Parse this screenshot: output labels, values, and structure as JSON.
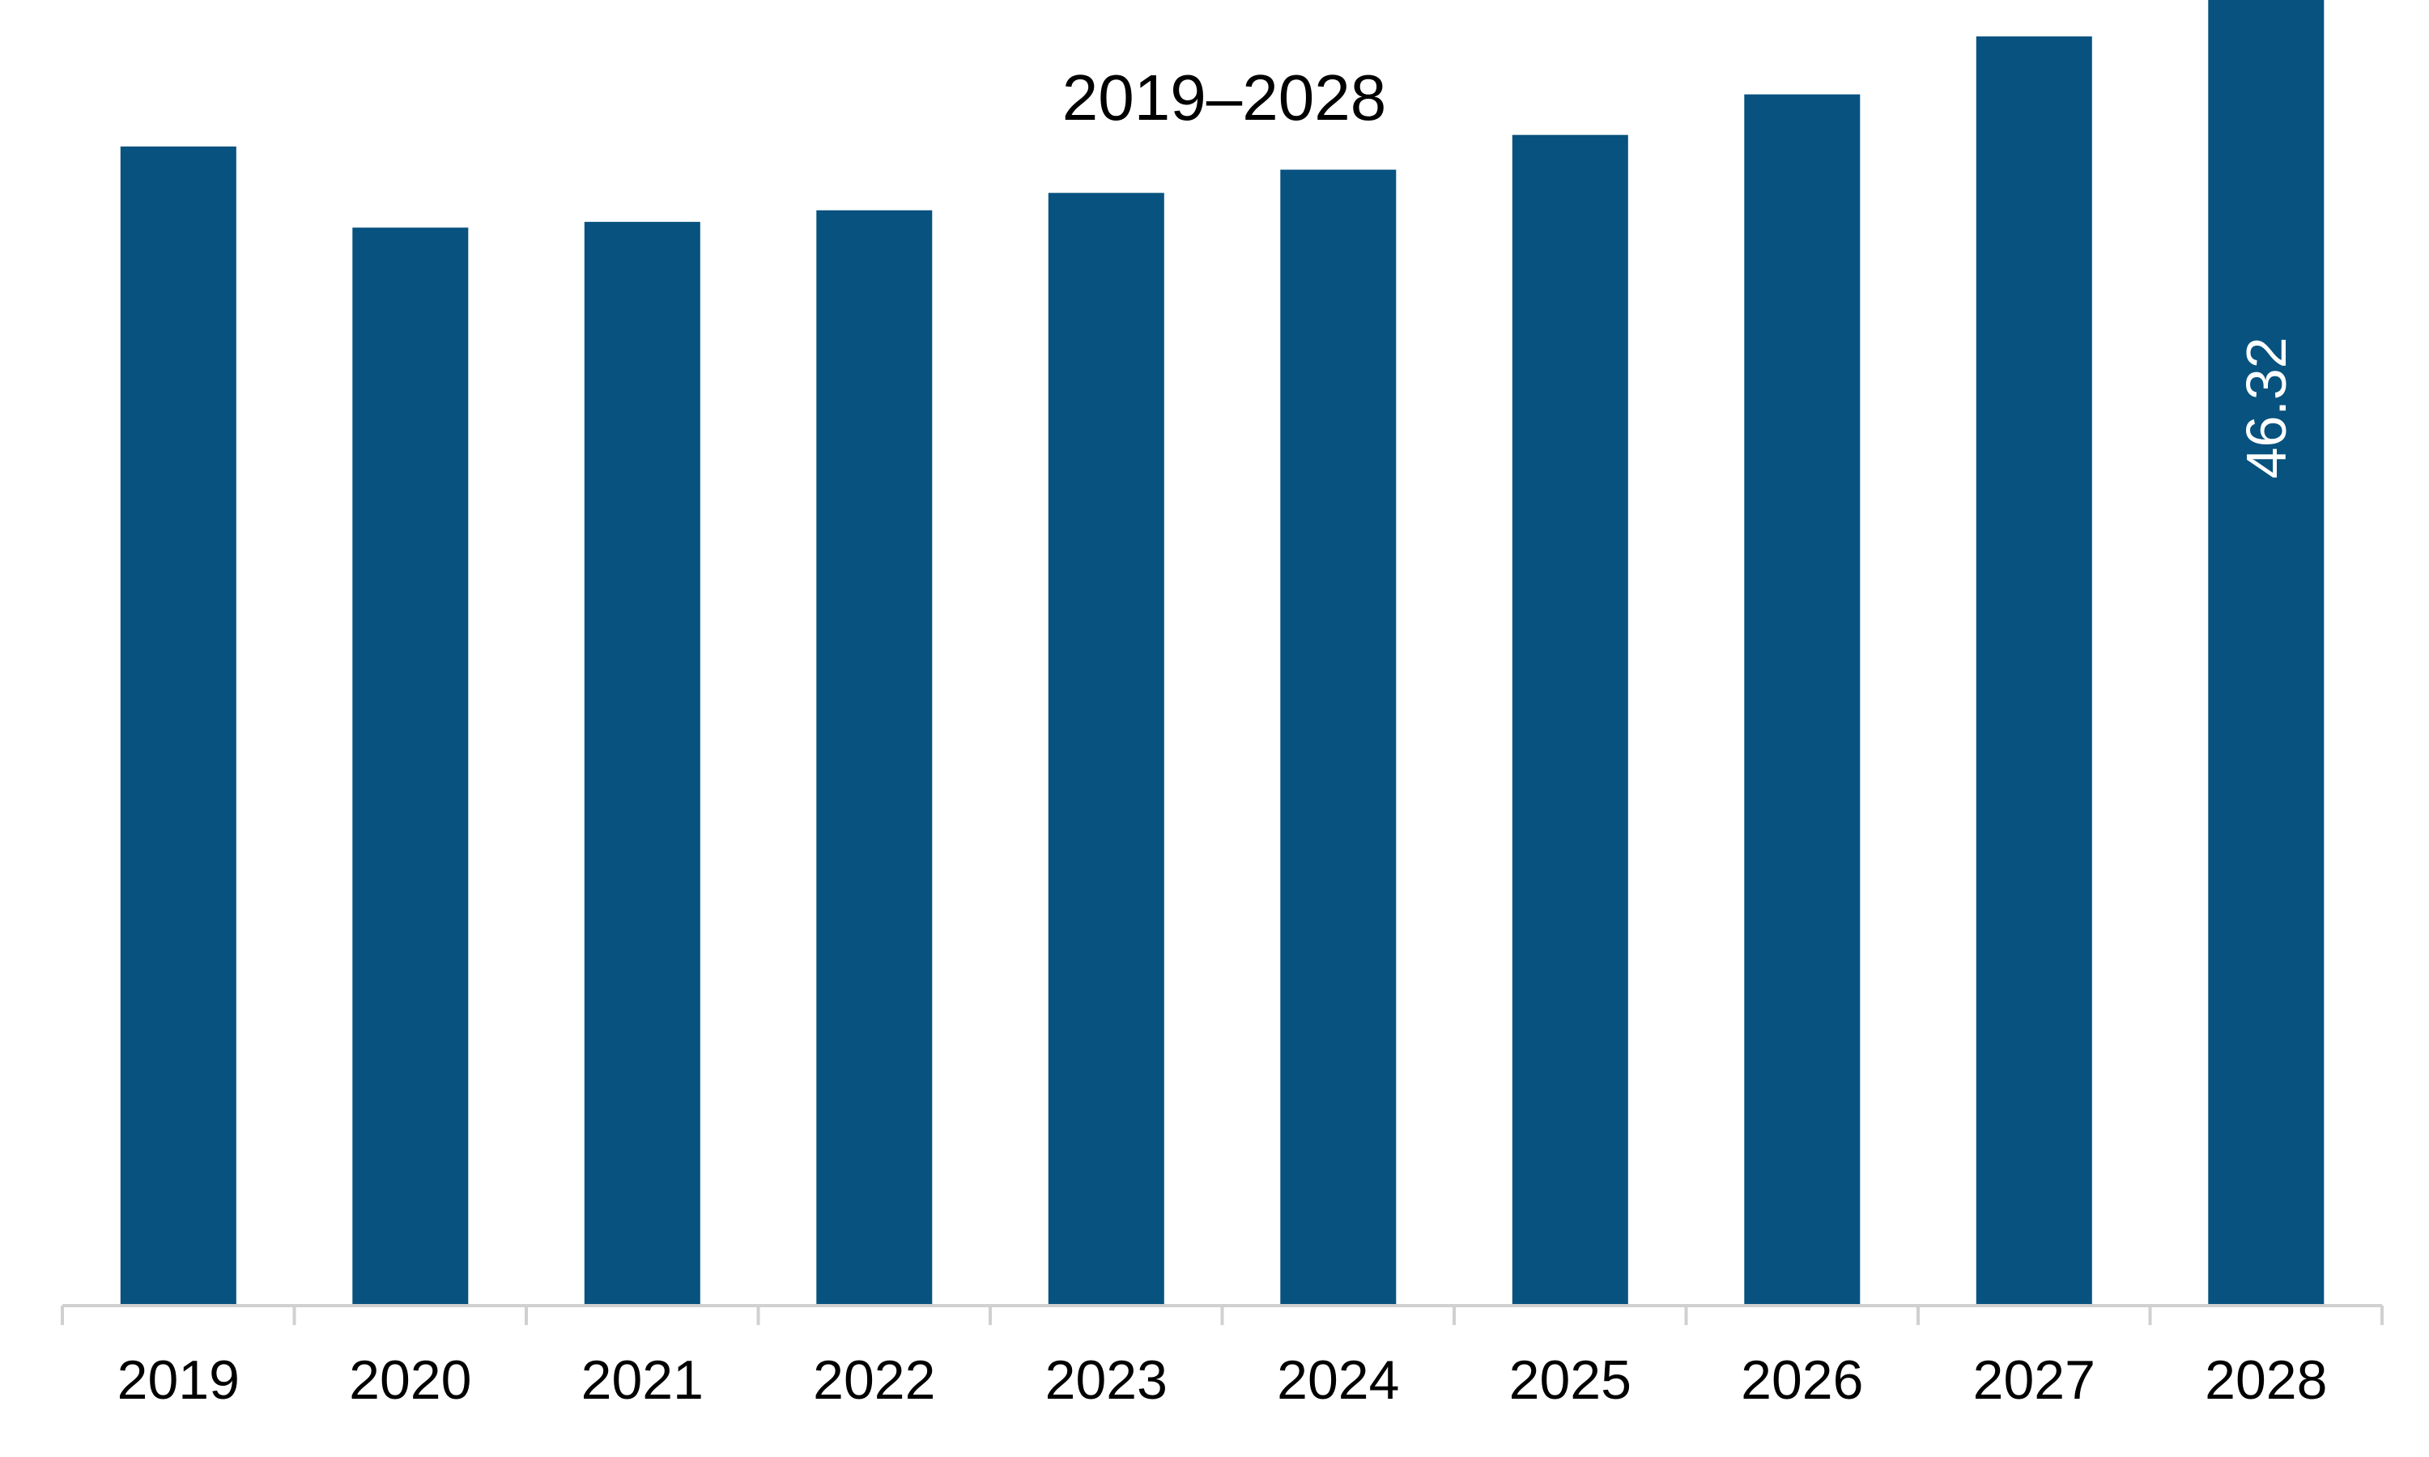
{
  "chart_data": {
    "type": "bar",
    "title": "2019–2028",
    "categories": [
      "2019",
      "2020",
      "2021",
      "2022",
      "2023",
      "2024",
      "2025",
      "2026",
      "2027",
      "2028"
    ],
    "values": [
      40.0,
      37.2,
      37.4,
      37.8,
      38.4,
      39.2,
      40.4,
      41.8,
      43.8,
      46.32
    ],
    "data_labels": [
      null,
      null,
      null,
      null,
      null,
      null,
      null,
      null,
      null,
      "46.32"
    ],
    "ylim": [
      0,
      50
    ],
    "grid": false,
    "legend": "none",
    "colors": {
      "bar": "#07527F",
      "axis": "#D0D0D0",
      "label_on_bar": "#FFFFFF"
    }
  }
}
